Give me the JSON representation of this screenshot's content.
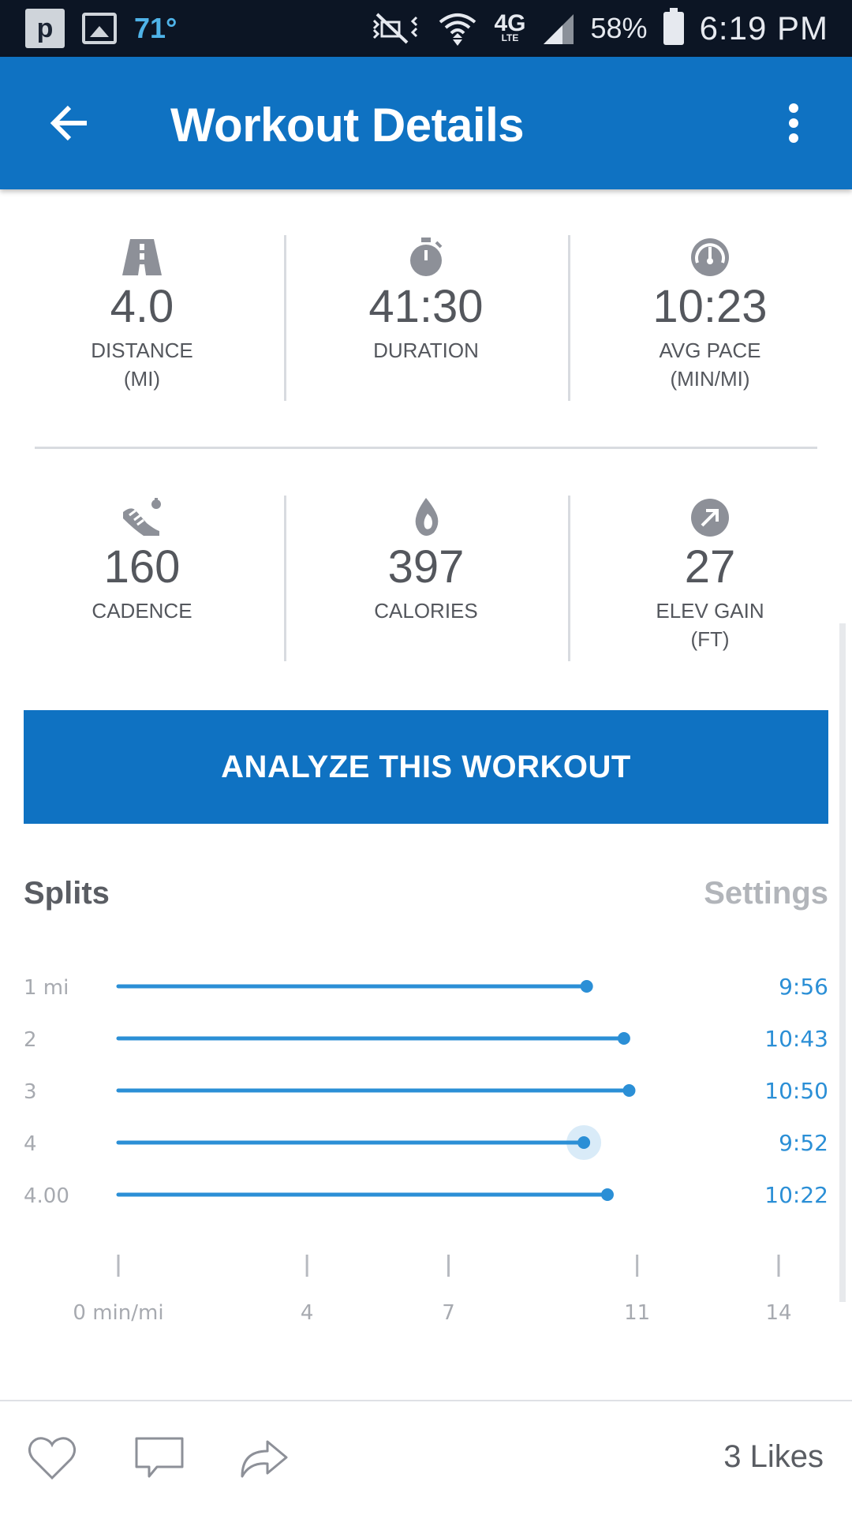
{
  "status_bar": {
    "temperature": "71°",
    "network": "4G",
    "network_sub": "LTE",
    "battery": "58%",
    "time": "6:19 PM"
  },
  "app_bar": {
    "title": "Workout Details"
  },
  "stats": [
    {
      "icon": "road-icon",
      "value": "4.0",
      "label": "DISTANCE\n(MI)"
    },
    {
      "icon": "stopwatch-icon",
      "value": "41:30",
      "label": "DURATION"
    },
    {
      "icon": "speedometer-icon",
      "value": "10:23",
      "label": "AVG PACE\n(MIN/MI)"
    },
    {
      "icon": "shoe-icon",
      "value": "160",
      "label": "CADENCE"
    },
    {
      "icon": "flame-icon",
      "value": "397",
      "label": "CALORIES"
    },
    {
      "icon": "arrow-up-right-icon",
      "value": "27",
      "label": "ELEV GAIN\n(FT)"
    }
  ],
  "analyze_button": {
    "label": "ANALYZE THIS WORKOUT"
  },
  "splits": {
    "title": "Splits",
    "settings_label": "Settings"
  },
  "chart_data": {
    "type": "bar",
    "orientation": "horizontal",
    "categories": [
      "1 mi",
      "2",
      "3",
      "4",
      "4.00"
    ],
    "values_min_per_mi": [
      9.93,
      10.72,
      10.83,
      9.87,
      10.37
    ],
    "value_labels": [
      "9:56",
      "10:43",
      "10:50",
      "9:52",
      "10:22"
    ],
    "highlighted_index": 3,
    "x_ticks": [
      0,
      4,
      7,
      11,
      14
    ],
    "x_tick_labels": [
      "0 min/mi",
      "4",
      "7",
      "11",
      "14"
    ],
    "xlim": [
      0,
      14
    ],
    "accent_color": "#2b8fd6"
  },
  "bottom_bar": {
    "likes": "3 Likes"
  },
  "colors": {
    "primary": "#0f72c2",
    "status_bar": "#0c1524",
    "text": "#54575d",
    "muted": "#b2b5ba"
  }
}
